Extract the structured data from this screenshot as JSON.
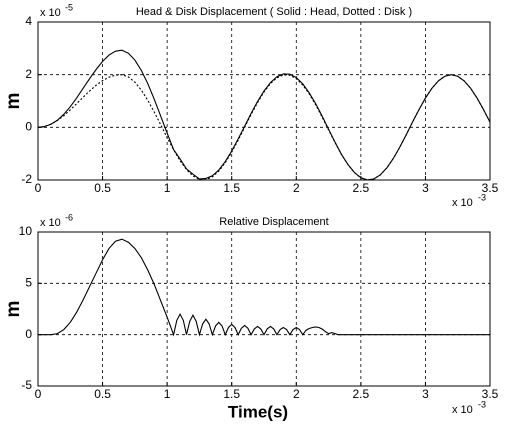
{
  "chart_data": [
    {
      "type": "line",
      "title": "Head & Disk Displacement ( Solid : Head,  Dotted : Disk )",
      "ylabel": "m",
      "y_exponent": {
        "base": "x 10",
        "power": "-5"
      },
      "x_exponent": {
        "base": "x 10",
        "power": "-3"
      },
      "xlim": [
        0,
        3.5
      ],
      "xticks": [
        0,
        0.5,
        1,
        1.5,
        2,
        2.5,
        3,
        3.5
      ],
      "ylim": [
        -2,
        4
      ],
      "yticks": [
        -2,
        0,
        2,
        4
      ],
      "grid": true,
      "x": [
        0,
        0.05,
        0.1,
        0.15,
        0.2,
        0.25,
        0.3,
        0.35,
        0.4,
        0.45,
        0.5,
        0.55,
        0.6,
        0.65,
        0.7,
        0.75,
        0.8,
        0.85,
        0.9,
        0.95,
        1,
        1.05,
        1.1,
        1.15,
        1.2,
        1.25,
        1.3,
        1.35,
        1.4,
        1.45,
        1.5,
        1.55,
        1.6,
        1.65,
        1.7,
        1.75,
        1.8,
        1.85,
        1.9,
        1.95,
        2,
        2.05,
        2.1,
        2.15,
        2.2,
        2.25,
        2.3,
        2.35,
        2.4,
        2.45,
        2.5,
        2.55,
        2.6,
        2.65,
        2.7,
        2.75,
        2.8,
        2.85,
        2.9,
        2.95,
        3,
        3.05,
        3.1,
        3.15,
        3.2,
        3.25,
        3.3,
        3.35,
        3.4,
        3.45,
        3.5
      ],
      "series": [
        {
          "color": "#000000",
          "style": "solid",
          "values": [
            0,
            0.03,
            0.118,
            0.269,
            0.494,
            0.784,
            1.122,
            1.487,
            1.853,
            2.196,
            2.503,
            2.744,
            2.891,
            2.928,
            2.814,
            2.555,
            2.164,
            1.659,
            1.07,
            0.428,
            -0.22,
            -0.846,
            -1.2,
            -1.58,
            -1.78,
            -1.96,
            -1.94,
            -1.84,
            -1.62,
            -1.3,
            -0.9,
            -0.44,
            0.04,
            0.53,
            0.98,
            1.38,
            1.7,
            1.92,
            2.03,
            2.02,
            1.89,
            1.65,
            1.31,
            0.9,
            0.43,
            -0.07,
            -0.56,
            -1.029,
            -1.414,
            -1.715,
            -1.914,
            -1.998,
            -1.962,
            -1.808,
            -1.546,
            -1.192,
            -0.766,
            -0.294,
            0.196,
            0.672,
            1.112,
            1.482,
            1.764,
            1.94,
            2.0,
            1.94,
            1.764,
            1.482,
            1.112,
            0.672,
            0.196
          ]
        },
        {
          "color": "#000000",
          "style": "dotted",
          "values": [
            0,
            0.03,
            0.118,
            0.259,
            0.444,
            0.664,
            0.902,
            1.147,
            1.383,
            1.596,
            1.773,
            1.904,
            1.981,
            1.998,
            1.914,
            1.715,
            1.414,
            1.029,
            0.58,
            0.098,
            -0.39,
            -0.856,
            -1.268,
            -1.606,
            -1.848,
            -1.978,
            -1.99,
            -1.882,
            -1.662,
            -1.344,
            -0.942,
            -0.486,
            0,
            0.486,
            0.942,
            1.344,
            1.662,
            1.882,
            1.99,
            1.978,
            1.848,
            1.606,
            1.268,
            0.856,
            0.39,
            -0.098,
            -0.58,
            -1.029,
            -1.414,
            -1.715,
            -1.914,
            -1.998,
            -1.962,
            -1.808,
            -1.546,
            -1.192,
            -0.766,
            -0.294,
            0.196,
            0.672,
            1.112,
            1.482,
            1.764,
            1.94,
            2.0,
            1.94,
            1.764,
            1.482,
            1.112,
            0.672,
            0.196
          ]
        }
      ]
    },
    {
      "type": "line",
      "title": "Relative Displacement",
      "ylabel": "m",
      "xlabel": "Time(s)",
      "y_exponent": {
        "base": "x 10",
        "power": "-6"
      },
      "x_exponent": {
        "base": "x 10",
        "power": "-3"
      },
      "xlim": [
        0,
        3.5
      ],
      "xticks": [
        0,
        0.5,
        1,
        1.5,
        2,
        2.5,
        3,
        3.5
      ],
      "ylim": [
        -5,
        10
      ],
      "yticks": [
        -5,
        0,
        5,
        10
      ],
      "grid": true,
      "x": [
        0,
        0.05,
        0.1,
        0.15,
        0.2,
        0.25,
        0.3,
        0.35,
        0.4,
        0.45,
        0.5,
        0.55,
        0.6,
        0.65,
        0.7,
        0.75,
        0.8,
        0.85,
        0.9,
        0.95,
        1,
        1.025,
        1.05,
        1.075,
        1.1,
        1.125,
        1.15,
        1.175,
        1.2,
        1.225,
        1.25,
        1.275,
        1.3,
        1.325,
        1.35,
        1.375,
        1.4,
        1.425,
        1.45,
        1.475,
        1.5,
        1.525,
        1.55,
        1.575,
        1.6,
        1.625,
        1.65,
        1.675,
        1.7,
        1.725,
        1.75,
        1.775,
        1.8,
        1.825,
        1.85,
        1.875,
        1.9,
        1.925,
        1.95,
        1.975,
        2,
        2.025,
        2.05,
        2.075,
        2.1,
        2.125,
        2.15,
        2.175,
        2.2,
        2.225,
        2.25,
        2.275,
        2.3,
        2.325,
        2.35,
        2.375,
        2.4,
        2.45,
        2.5,
        2.55,
        2.6,
        2.65,
        2.7,
        2.75,
        2.8,
        2.85,
        2.9,
        2.95,
        3,
        3.05,
        3.1,
        3.15,
        3.2,
        3.25,
        3.3,
        3.35,
        3.4,
        3.45,
        3.5
      ],
      "series": [
        {
          "color": "#000000",
          "style": "solid",
          "values": [
            0,
            0,
            0,
            0.1,
            0.5,
            1.2,
            2.2,
            3.4,
            4.7,
            6.0,
            7.3,
            8.4,
            9.1,
            9.3,
            9.0,
            8.4,
            7.5,
            6.3,
            4.9,
            3.3,
            1.7,
            0.85,
            0,
            1.4,
            2.0,
            1.4,
            0,
            1.3,
            1.9,
            1.3,
            0,
            1.05,
            1.5,
            1.05,
            0,
            0.85,
            1.2,
            0.85,
            0,
            0.7,
            1.0,
            0.7,
            0,
            0.63,
            0.9,
            0.63,
            0,
            0.56,
            0.8,
            0.56,
            0,
            0.56,
            0.8,
            0.56,
            0,
            0.5,
            0.7,
            0.5,
            0,
            0.5,
            0.7,
            0.5,
            0,
            0.42,
            0.6,
            0.7,
            0.75,
            0.7,
            0.55,
            0.3,
            0.1,
            0.2,
            0.1,
            0,
            0,
            0,
            0,
            0,
            0,
            0,
            0,
            0,
            0,
            0,
            0,
            0,
            0,
            0,
            0,
            0,
            0,
            0,
            0,
            0,
            0,
            0,
            0,
            0,
            0
          ]
        }
      ]
    }
  ]
}
